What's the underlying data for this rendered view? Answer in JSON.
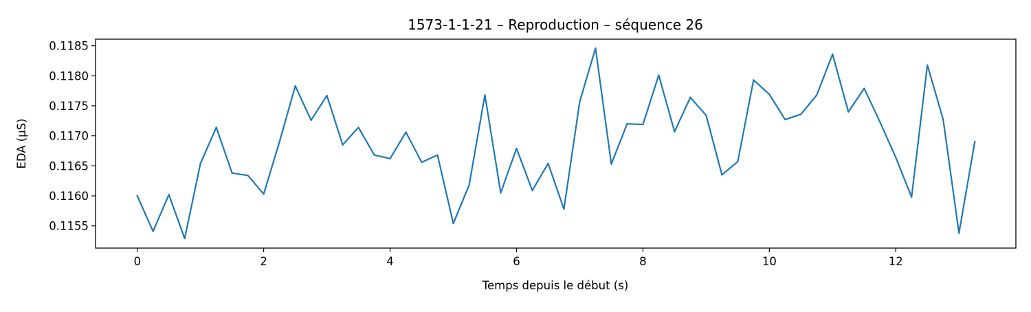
{
  "chart_data": {
    "type": "line",
    "title": "1573-1-1-21 – Reproduction – séquence 26",
    "xlabel": "Temps depuis le début (s)",
    "ylabel": "EDA (µS)",
    "xlim": [
      -0.66,
      13.9
    ],
    "ylim": [
      0.11513,
      0.11861
    ],
    "xticks": [
      0,
      2,
      4,
      6,
      8,
      10,
      12
    ],
    "xtick_labels": [
      "0",
      "2",
      "4",
      "6",
      "8",
      "10",
      "12"
    ],
    "yticks": [
      0.1155,
      0.116,
      0.1165,
      0.117,
      0.1175,
      0.118,
      0.1185
    ],
    "ytick_labels": [
      "0.1155",
      "0.1160",
      "0.1165",
      "0.1170",
      "0.1175",
      "0.1180",
      "0.1185"
    ],
    "grid": false,
    "series": [
      {
        "color": "#1f77b4",
        "x": [
          0,
          0.25,
          0.5,
          0.75,
          1.0,
          1.25,
          1.5,
          1.75,
          2.0,
          2.25,
          2.5,
          2.75,
          3.0,
          3.25,
          3.5,
          3.75,
          4.0,
          4.25,
          4.5,
          4.75,
          5.0,
          5.25,
          5.5,
          5.75,
          6.0,
          6.25,
          6.5,
          6.75,
          7.0,
          7.25,
          7.5,
          7.75,
          8.0,
          8.25,
          8.5,
          8.75,
          9.0,
          9.25,
          9.5,
          9.75,
          10.0,
          10.25,
          10.5,
          10.75,
          11.0,
          11.25,
          11.5,
          11.75,
          12.0,
          12.25,
          12.5,
          12.75,
          13.0,
          13.25
        ],
        "y": [
          0.116,
          0.11541,
          0.11602,
          0.11529,
          0.11654,
          0.11714,
          0.11638,
          0.11634,
          0.11603,
          0.1169,
          0.11783,
          0.11726,
          0.11767,
          0.11685,
          0.11714,
          0.11668,
          0.11662,
          0.11706,
          0.11656,
          0.11668,
          0.11554,
          0.11618,
          0.11768,
          0.11605,
          0.11679,
          0.11609,
          0.11654,
          0.11578,
          0.11757,
          0.11846,
          0.11653,
          0.1172,
          0.11719,
          0.11801,
          0.11707,
          0.11764,
          0.11734,
          0.11635,
          0.11657,
          0.11793,
          0.11769,
          0.11727,
          0.11736,
          0.11768,
          0.11836,
          0.1174,
          0.11779,
          0.11723,
          0.11664,
          0.11598,
          0.11818,
          0.11727,
          0.11538,
          0.1169
        ]
      }
    ]
  }
}
